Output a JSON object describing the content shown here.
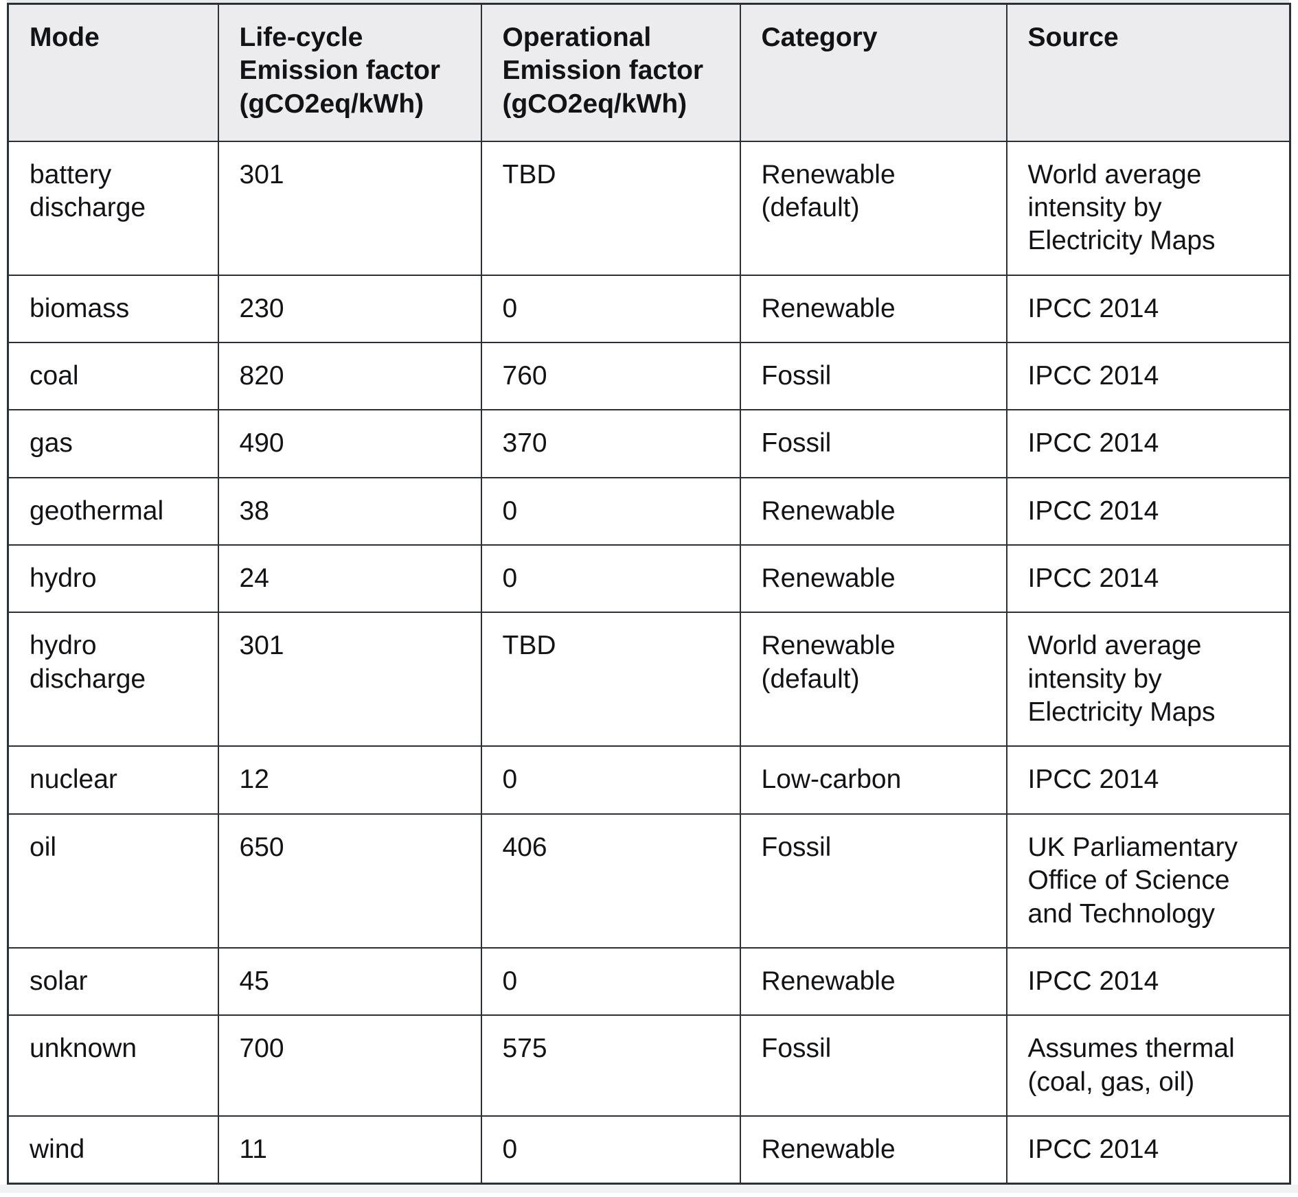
{
  "table": {
    "columns": [
      {
        "key": "mode",
        "label": "Mode"
      },
      {
        "key": "lifecycle",
        "label": "Life-cycle Emission factor (gCO2eq/kWh)"
      },
      {
        "key": "operational",
        "label": "Operational Emission factor (gCO2eq/kWh)"
      },
      {
        "key": "category",
        "label": "Category"
      },
      {
        "key": "source",
        "label": "Source"
      }
    ],
    "rows": [
      {
        "mode": "battery discharge",
        "lifecycle": "301",
        "operational": "TBD",
        "category": "Renewable (default)",
        "source": "World average intensity by Electricity Maps"
      },
      {
        "mode": "biomass",
        "lifecycle": "230",
        "operational": "0",
        "category": "Renewable",
        "source": "IPCC 2014"
      },
      {
        "mode": "coal",
        "lifecycle": "820",
        "operational": "760",
        "category": "Fossil",
        "source": "IPCC 2014"
      },
      {
        "mode": "gas",
        "lifecycle": "490",
        "operational": "370",
        "category": "Fossil",
        "source": "IPCC 2014"
      },
      {
        "mode": "geothermal",
        "lifecycle": "38",
        "operational": "0",
        "category": "Renewable",
        "source": "IPCC 2014"
      },
      {
        "mode": "hydro",
        "lifecycle": "24",
        "operational": "0",
        "category": "Renewable",
        "source": "IPCC 2014"
      },
      {
        "mode": "hydro discharge",
        "lifecycle": "301",
        "operational": "TBD",
        "category": "Renewable (default)",
        "source": "World average intensity by Electricity Maps"
      },
      {
        "mode": "nuclear",
        "lifecycle": "12",
        "operational": "0",
        "category": "Low-carbon",
        "source": "IPCC 2014"
      },
      {
        "mode": "oil",
        "lifecycle": "650",
        "operational": "406",
        "category": "Fossil",
        "source": "UK Parliamentary Office of Science and Technology"
      },
      {
        "mode": "solar",
        "lifecycle": "45",
        "operational": "0",
        "category": "Renewable",
        "source": "IPCC 2014"
      },
      {
        "mode": "unknown",
        "lifecycle": "700",
        "operational": "575",
        "category": "Fossil",
        "source": "Assumes thermal (coal, gas, oil)"
      },
      {
        "mode": "wind",
        "lifecycle": "11",
        "operational": "0",
        "category": "Renewable",
        "source": "IPCC 2014"
      }
    ]
  },
  "colors": {
    "header_background": "#ececee",
    "cell_background": "#ffffff",
    "border": "#2b2f36",
    "text": "#121316"
  }
}
